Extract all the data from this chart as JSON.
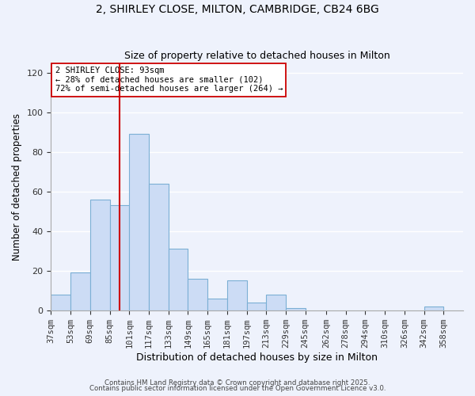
{
  "title1": "2, SHIRLEY CLOSE, MILTON, CAMBRIDGE, CB24 6BG",
  "title2": "Size of property relative to detached houses in Milton",
  "xlabel": "Distribution of detached houses by size in Milton",
  "ylabel": "Number of detached properties",
  "bin_labels": [
    "37sqm",
    "53sqm",
    "69sqm",
    "85sqm",
    "101sqm",
    "117sqm",
    "133sqm",
    "149sqm",
    "165sqm",
    "181sqm",
    "197sqm",
    "213sqm",
    "229sqm",
    "245sqm",
    "262sqm",
    "278sqm",
    "294sqm",
    "310sqm",
    "326sqm",
    "342sqm",
    "358sqm"
  ],
  "bin_edges": [
    37,
    53,
    69,
    85,
    101,
    117,
    133,
    149,
    165,
    181,
    197,
    213,
    229,
    245,
    262,
    278,
    294,
    310,
    326,
    342,
    358,
    374
  ],
  "counts": [
    8,
    19,
    56,
    53,
    89,
    64,
    31,
    16,
    6,
    15,
    4,
    8,
    1,
    0,
    0,
    0,
    0,
    0,
    0,
    2,
    0
  ],
  "bar_color": "#ccdcf5",
  "bar_edge_color": "#7bafd4",
  "vline_x": 93,
  "vline_color": "#cc0000",
  "annotation_line1": "2 SHIRLEY CLOSE: 93sqm",
  "annotation_line2": "← 28% of detached houses are smaller (102)",
  "annotation_line3": "72% of semi-detached houses are larger (264) →",
  "ylim": [
    0,
    125
  ],
  "yticks": [
    0,
    20,
    40,
    60,
    80,
    100,
    120
  ],
  "footer1": "Contains HM Land Registry data © Crown copyright and database right 2025.",
  "footer2": "Contains public sector information licensed under the Open Government Licence v3.0.",
  "bg_color": "#eef2fc",
  "plot_bg_color": "#eef2fc",
  "grid_color": "#ffffff"
}
